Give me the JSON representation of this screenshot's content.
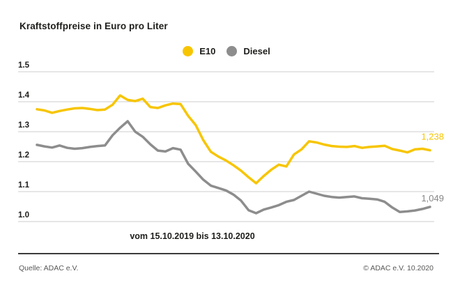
{
  "title": "Kraftstoffpreise in Euro pro Liter",
  "legend": [
    {
      "label": "E10",
      "color": "#F7C500"
    },
    {
      "label": "Diesel",
      "color": "#8D8D8D"
    }
  ],
  "footer": {
    "source": "Quelle: ADAC e.V.",
    "copyright": "© ADAC e.V. 10.2020"
  },
  "colors": {
    "grid": "#CDCDCD",
    "text_dark": "#1D1D1B",
    "e10": "#F7C500",
    "diesel": "#8D8D8D",
    "diesel_label": "#878787"
  },
  "chart_data": {
    "type": "line",
    "title": "Kraftstoffpreise in Euro pro Liter",
    "xlabel": "vom 15.10.2019 bis 13.10.2020",
    "ylabel": "Euro pro Liter",
    "x_range": [
      "15.10.2019",
      "13.10.2020"
    ],
    "x_unit": "weeks",
    "y_ticks": [
      "1.5",
      "1.4",
      "1.3",
      "1.2",
      "1.1",
      "1.0"
    ],
    "ylim": [
      0.96,
      1.5
    ],
    "grid": true,
    "legend_position": "top-center",
    "series": [
      {
        "name": "E10",
        "color": "#F7C500",
        "end_label": "1,238",
        "end_value": 1.238,
        "label_dy": -15,
        "values": [
          1.375,
          1.371,
          1.363,
          1.369,
          1.374,
          1.378,
          1.379,
          1.376,
          1.372,
          1.374,
          1.39,
          1.421,
          1.406,
          1.402,
          1.41,
          1.382,
          1.379,
          1.388,
          1.394,
          1.392,
          1.353,
          1.322,
          1.272,
          1.233,
          1.217,
          1.204,
          1.188,
          1.17,
          1.148,
          1.128,
          1.152,
          1.173,
          1.19,
          1.184,
          1.224,
          1.241,
          1.268,
          1.264,
          1.257,
          1.252,
          1.25,
          1.249,
          1.252,
          1.246,
          1.249,
          1.251,
          1.253,
          1.242,
          1.237,
          1.231,
          1.241,
          1.243,
          1.238
        ]
      },
      {
        "name": "Diesel",
        "color": "#8D8D8D",
        "label_color": "#878787",
        "end_label": "1,049",
        "end_value": 1.049,
        "label_dy": -8,
        "values": [
          1.256,
          1.251,
          1.247,
          1.254,
          1.246,
          1.243,
          1.245,
          1.249,
          1.252,
          1.254,
          1.288,
          1.313,
          1.335,
          1.3,
          1.283,
          1.258,
          1.237,
          1.234,
          1.245,
          1.24,
          1.193,
          1.167,
          1.14,
          1.12,
          1.112,
          1.104,
          1.09,
          1.07,
          1.038,
          1.028,
          1.04,
          1.047,
          1.055,
          1.066,
          1.072,
          1.086,
          1.1,
          1.093,
          1.086,
          1.082,
          1.08,
          1.082,
          1.084,
          1.078,
          1.076,
          1.074,
          1.066,
          1.047,
          1.032,
          1.034,
          1.037,
          1.042,
          1.049
        ]
      }
    ]
  }
}
